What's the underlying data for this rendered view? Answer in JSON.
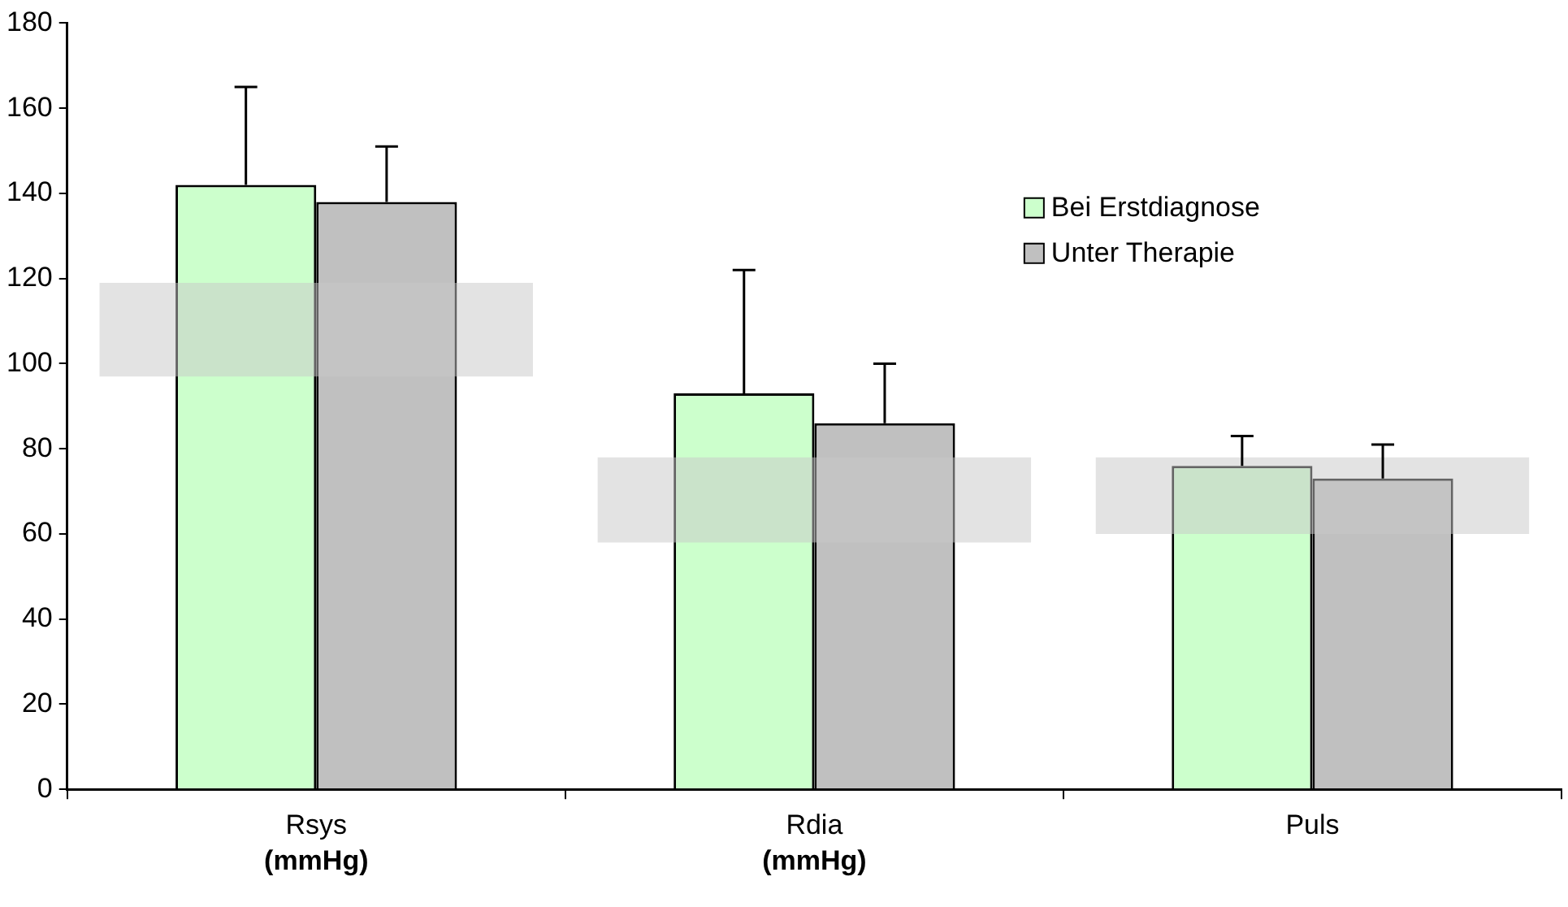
{
  "chart_data": {
    "type": "bar",
    "categories": [
      "Rsys\n(mmHg)",
      "Rdia\n(mmHg)",
      "Puls"
    ],
    "series": [
      {
        "name": "Bei Erstdiagnose",
        "color": "#ccffcc",
        "values": [
          142,
          93,
          76
        ],
        "errors": [
          [
            142,
            165
          ],
          [
            93,
            122
          ],
          [
            76,
            83
          ]
        ]
      },
      {
        "name": "Unter Therapie",
        "color": "#c0c0c0",
        "values": [
          138,
          86,
          73
        ],
        "errors": [
          [
            138,
            151
          ],
          [
            86,
            100
          ],
          [
            73,
            81
          ]
        ]
      },
      {
        "type": "bar",
        "color": "#c8c8c8",
        "base": [
          97,
          58,
          60
        ],
        "values": [
          22,
          20,
          18
        ]
      }
    ],
    "ylim": [
      0,
      180
    ],
    "yticks": [
      0,
      20,
      40,
      60,
      80,
      100,
      120,
      140,
      160,
      180
    ],
    "grid": false,
    "legend": "top right"
  }
}
